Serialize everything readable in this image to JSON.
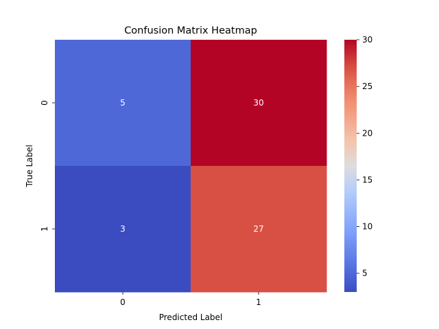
{
  "chart_data": {
    "type": "heatmap",
    "title": "Confusion Matrix Heatmap",
    "xlabel": "Predicted Label",
    "ylabel": "True Label",
    "x_categories": [
      "0",
      "1"
    ],
    "y_categories": [
      "0",
      "1"
    ],
    "values": [
      [
        5,
        30
      ],
      [
        3,
        27
      ]
    ],
    "colormap": "coolwarm",
    "color_range": [
      3,
      30
    ],
    "colorbar_ticks": [
      5,
      10,
      15,
      20,
      25,
      30
    ],
    "annotations": true,
    "grid": false
  }
}
